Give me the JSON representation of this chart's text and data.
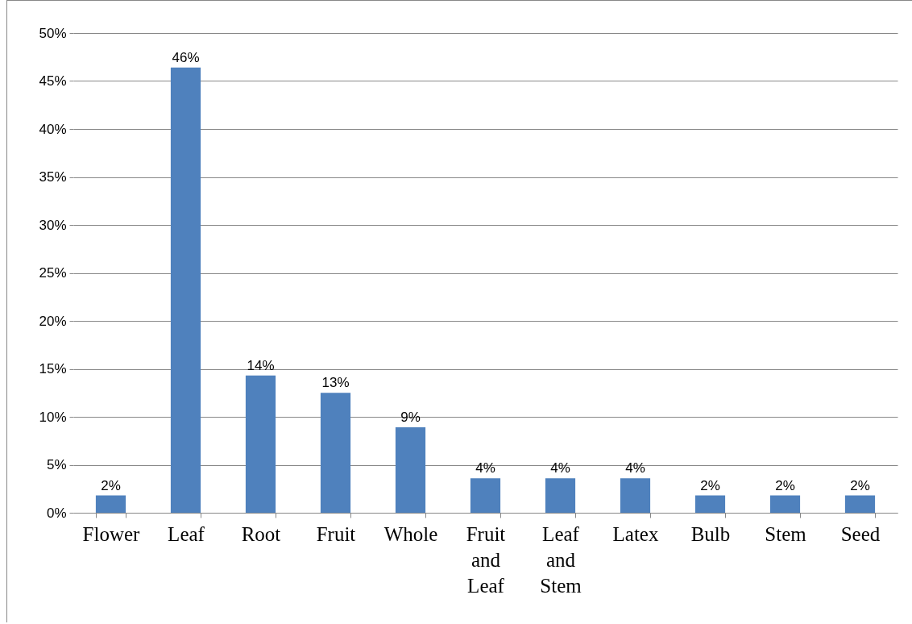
{
  "chart_data": {
    "type": "bar",
    "categories": [
      "Flower",
      "Leaf",
      "Root",
      "Fruit",
      "Whole",
      "Fruit and Leaf",
      "Leaf and Stem",
      "Latex",
      "Bulb",
      "Stem",
      "Seed"
    ],
    "values": [
      1.8,
      46.4,
      14.3,
      12.5,
      8.9,
      3.6,
      3.6,
      3.6,
      1.8,
      1.8,
      1.8
    ],
    "value_labels": [
      "2%",
      "46%",
      "14%",
      "13%",
      "9%",
      "4%",
      "4%",
      "4%",
      "2%",
      "2%",
      "2%"
    ],
    "color": "#4f81bd",
    "ylim": [
      0,
      50
    ],
    "yticks": [
      {
        "value": 0,
        "label": "0%"
      },
      {
        "value": 5,
        "label": "5%"
      },
      {
        "value": 10,
        "label": "10%"
      },
      {
        "value": 15,
        "label": "15%"
      },
      {
        "value": 20,
        "label": "20%"
      },
      {
        "value": 25,
        "label": "25%"
      },
      {
        "value": 30,
        "label": "30%"
      },
      {
        "value": 35,
        "label": "35%"
      },
      {
        "value": 40,
        "label": "40%"
      },
      {
        "value": 45,
        "label": "45%"
      },
      {
        "value": 50,
        "label": "50%"
      }
    ],
    "grid": "y"
  }
}
